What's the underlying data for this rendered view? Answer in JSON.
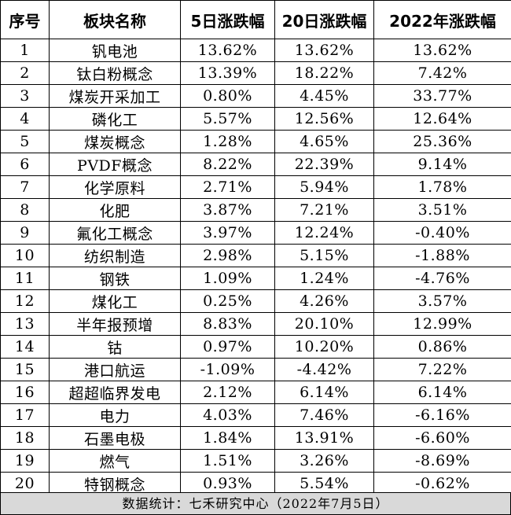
{
  "table": {
    "headers": [
      "序号",
      "板块名称",
      "5日涨跌幅",
      "20日涨跌幅",
      "2022年涨跌幅"
    ],
    "rows": [
      [
        "1",
        "钒电池",
        "13.62%",
        "13.62%",
        "13.62%"
      ],
      [
        "2",
        "钛白粉概念",
        "13.39%",
        "18.22%",
        "7.42%"
      ],
      [
        "3",
        "煤炭开采加工",
        "0.80%",
        "4.45%",
        "33.77%"
      ],
      [
        "4",
        "磷化工",
        "5.57%",
        "12.56%",
        "12.64%"
      ],
      [
        "5",
        "煤炭概念",
        "1.28%",
        "4.65%",
        "25.36%"
      ],
      [
        "6",
        "PVDF概念",
        "8.22%",
        "22.39%",
        "9.14%"
      ],
      [
        "7",
        "化学原料",
        "2.71%",
        "5.94%",
        "1.78%"
      ],
      [
        "8",
        "化肥",
        "3.87%",
        "7.21%",
        "3.51%"
      ],
      [
        "9",
        "氟化工概念",
        "3.97%",
        "12.24%",
        "-0.40%"
      ],
      [
        "10",
        "纺织制造",
        "2.98%",
        "5.15%",
        "-1.88%"
      ],
      [
        "11",
        "钢铁",
        "1.09%",
        "1.24%",
        "-4.76%"
      ],
      [
        "12",
        "煤化工",
        "0.25%",
        "4.26%",
        "3.57%"
      ],
      [
        "13",
        "半年报预增",
        "8.83%",
        "20.10%",
        "12.99%"
      ],
      [
        "14",
        "钴",
        "0.97%",
        "10.20%",
        "0.86%"
      ],
      [
        "15",
        "港口航运",
        "-1.09%",
        "-4.42%",
        "7.22%"
      ],
      [
        "16",
        "超超临界发电",
        "2.12%",
        "6.14%",
        "6.14%"
      ],
      [
        "17",
        "电力",
        "4.03%",
        "7.46%",
        "-6.16%"
      ],
      [
        "18",
        "石墨电极",
        "1.84%",
        "13.91%",
        "-6.60%"
      ],
      [
        "19",
        "燃气",
        "1.51%",
        "3.26%",
        "-8.69%"
      ],
      [
        "20",
        "特钢概念",
        "0.93%",
        "5.54%",
        "-0.62%"
      ]
    ]
  },
  "footer": {
    "text": "数据统计：七禾研究中心（2022年7月5日）"
  }
}
